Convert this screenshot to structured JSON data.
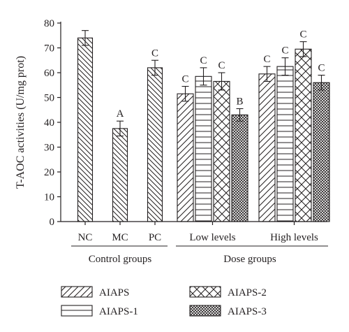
{
  "chart_data": {
    "type": "bar",
    "ylabel": "T-AOC activities (U/mg prot)",
    "ylim": [
      0,
      80
    ],
    "yticks": [
      0,
      10,
      20,
      30,
      40,
      50,
      60,
      70,
      80
    ],
    "control_groups": {
      "label": "Control groups",
      "categories": [
        "NC",
        "MC",
        "PC"
      ],
      "values": [
        74,
        37.5,
        62
      ],
      "errors": [
        3,
        3,
        3
      ],
      "letters": [
        "",
        "A",
        "C"
      ]
    },
    "dose_groups": {
      "label": "Dose groups",
      "levels": [
        "Low levels",
        "High levels"
      ],
      "series": [
        {
          "name": "AIAPS",
          "pattern": "diag-down",
          "values": [
            51.5,
            59.5
          ],
          "errors": [
            3,
            3
          ],
          "letters": [
            "C",
            "C"
          ]
        },
        {
          "name": "AIAPS-1",
          "pattern": "horizontal",
          "values": [
            58.5,
            62.5
          ],
          "errors": [
            3.5,
            3.5
          ],
          "letters": [
            "C",
            "C"
          ]
        },
        {
          "name": "AIAPS-2",
          "pattern": "crosshatch",
          "values": [
            56.5,
            69.5
          ],
          "errors": [
            3.5,
            3
          ],
          "letters": [
            "C",
            "C"
          ]
        },
        {
          "name": "AIAPS-3",
          "pattern": "dense-cross",
          "values": [
            43,
            56
          ],
          "errors": [
            2.5,
            3
          ],
          "letters": [
            "B",
            "C"
          ]
        }
      ]
    },
    "legend": {
      "placement": "bottom",
      "items": [
        "AIAPS",
        "AIAPS-1",
        "AIAPS-2",
        "AIAPS-3"
      ]
    },
    "colors": {
      "ink": "#231f20",
      "background": "#ffffff"
    }
  }
}
